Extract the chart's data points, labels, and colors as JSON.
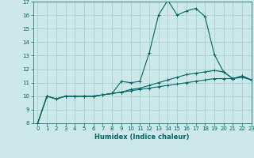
{
  "xlabel": "Humidex (Indice chaleur)",
  "ylabel": "",
  "bg_color": "#cce8e8",
  "grid_color": "#aad0d0",
  "line_color": "#006666",
  "x_values": [
    0,
    1,
    2,
    3,
    4,
    5,
    6,
    7,
    8,
    9,
    10,
    11,
    12,
    13,
    14,
    15,
    16,
    17,
    18,
    19,
    20,
    21,
    22,
    23
  ],
  "line1": [
    8.0,
    10.0,
    9.8,
    10.0,
    10.0,
    10.0,
    10.0,
    10.1,
    10.2,
    11.1,
    11.0,
    11.1,
    13.2,
    16.0,
    17.1,
    16.0,
    16.3,
    16.5,
    15.9,
    13.1,
    11.8,
    11.3,
    11.5,
    11.2
  ],
  "line2": [
    8.0,
    10.0,
    9.8,
    10.0,
    10.0,
    10.0,
    10.0,
    10.1,
    10.2,
    10.3,
    10.5,
    10.6,
    10.8,
    11.0,
    11.2,
    11.4,
    11.6,
    11.7,
    11.8,
    11.9,
    11.8,
    11.3,
    11.5,
    11.2
  ],
  "line3": [
    8.0,
    10.0,
    9.8,
    10.0,
    10.0,
    10.0,
    10.0,
    10.1,
    10.2,
    10.3,
    10.4,
    10.5,
    10.6,
    10.7,
    10.8,
    10.9,
    11.0,
    11.1,
    11.2,
    11.3,
    11.3,
    11.3,
    11.4,
    11.2
  ],
  "ylim": [
    8,
    17
  ],
  "xlim": [
    -0.5,
    23
  ],
  "yticks": [
    8,
    9,
    10,
    11,
    12,
    13,
    14,
    15,
    16,
    17
  ],
  "xticks": [
    0,
    1,
    2,
    3,
    4,
    5,
    6,
    7,
    8,
    9,
    10,
    11,
    12,
    13,
    14,
    15,
    16,
    17,
    18,
    19,
    20,
    21,
    22,
    23
  ],
  "xlabel_fontsize": 6.0,
  "tick_fontsize": 5.0,
  "linewidth": 0.8,
  "markersize": 2.5
}
